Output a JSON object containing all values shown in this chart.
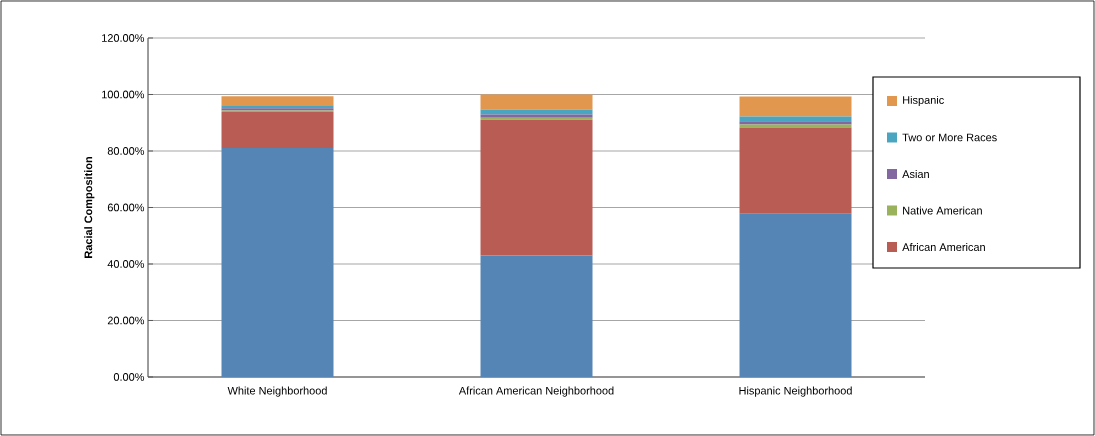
{
  "chart_data": {
    "type": "bar",
    "stacked": true,
    "ylabel": "Racial Composition",
    "categories": [
      "White Neighborhood",
      "African American Neighborhood",
      "Hispanic Neighborhood"
    ],
    "series": [
      {
        "color": "#5585b5",
        "values": [
          81.1,
          43.0,
          57.8
        ]
      },
      {
        "name": "African American",
        "color": "#b95c53",
        "values": [
          12.7,
          48.1,
          30.5
        ]
      },
      {
        "name": "Native American",
        "color": "#9bb25c",
        "values": [
          0.5,
          0.7,
          1.1
        ]
      },
      {
        "name": "Asian",
        "color": "#8267a0",
        "values": [
          0.8,
          1.1,
          1.1
        ]
      },
      {
        "name": "Two or More Races",
        "color": "#4aa6c0",
        "values": [
          1.1,
          1.8,
          1.7
        ]
      },
      {
        "name": "Hispanic",
        "color": "#e2974f",
        "values": [
          3.2,
          5.3,
          7.1
        ]
      }
    ],
    "ylim": [
      0,
      120
    ],
    "yticks": [
      {
        "value": 0,
        "label": "0.00%"
      },
      {
        "value": 20,
        "label": "20.00%"
      },
      {
        "value": 40,
        "label": "40.00%"
      },
      {
        "value": 60,
        "label": "60.00%"
      },
      {
        "value": 80,
        "label": "80.00%"
      },
      {
        "value": 100,
        "label": "100.00%"
      },
      {
        "value": 120,
        "label": "120.00%"
      }
    ],
    "grid": "y",
    "legend": "right"
  }
}
